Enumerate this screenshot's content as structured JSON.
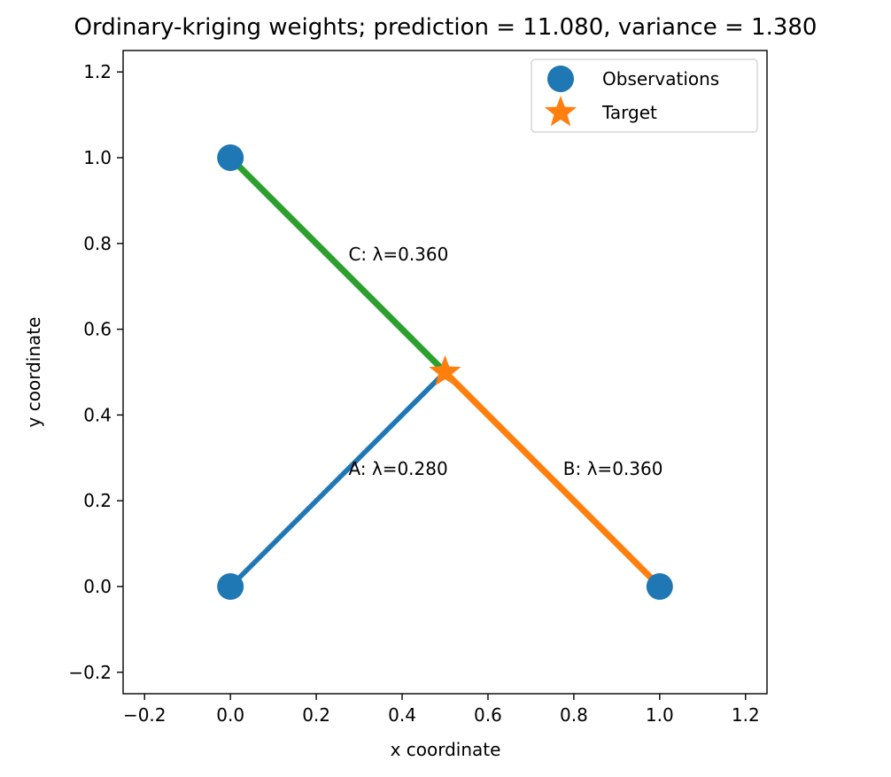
{
  "chart_data": {
    "type": "scatter",
    "title": "Ordinary-kriging weights; prediction = 11.080, variance = 1.380",
    "xlabel": "x coordinate",
    "ylabel": "y coordinate",
    "xlim": [
      -0.25,
      1.25
    ],
    "ylim": [
      -0.25,
      1.25
    ],
    "xticks": [
      -0.2,
      0.0,
      0.2,
      0.4,
      0.6,
      0.8,
      1.0,
      1.2
    ],
    "yticks": [
      -0.2,
      0.0,
      0.2,
      0.4,
      0.6,
      0.8,
      1.0,
      1.2
    ],
    "xtick_labels": [
      "−0.2",
      "0.0",
      "0.2",
      "0.4",
      "0.6",
      "0.8",
      "1.0",
      "1.2"
    ],
    "ytick_labels": [
      "−0.2",
      "0.0",
      "0.2",
      "0.4",
      "0.6",
      "0.8",
      "1.0",
      "1.2"
    ],
    "grid": false,
    "legend_position": "top-right",
    "legend": [
      {
        "label": "Observations",
        "marker": "circle",
        "color": "#1f77b4"
      },
      {
        "label": "Target",
        "marker": "star",
        "color": "#ff7f0e"
      }
    ],
    "observations": [
      {
        "x": 0.0,
        "y": 0.0
      },
      {
        "x": 1.0,
        "y": 0.0
      },
      {
        "x": 0.0,
        "y": 1.0
      }
    ],
    "target": {
      "x": 0.5,
      "y": 0.5
    },
    "weight_lines": [
      {
        "from": [
          0.0,
          0.0
        ],
        "to": [
          0.5,
          0.5
        ],
        "weight": 0.28,
        "color": "#1f77b4"
      },
      {
        "from": [
          1.0,
          0.0
        ],
        "to": [
          0.5,
          0.5
        ],
        "weight": 0.36,
        "color": "#ff7f0e"
      },
      {
        "from": [
          0.0,
          1.0
        ],
        "to": [
          0.5,
          0.5
        ],
        "weight": 0.36,
        "color": "#2ca02c"
      }
    ],
    "annotations": [
      {
        "text": "A: λ=0.280",
        "x": 0.275,
        "y": 0.275
      },
      {
        "text": "B: λ=0.360",
        "x": 0.775,
        "y": 0.275
      },
      {
        "text": "C: λ=0.360",
        "x": 0.275,
        "y": 0.775
      }
    ]
  }
}
